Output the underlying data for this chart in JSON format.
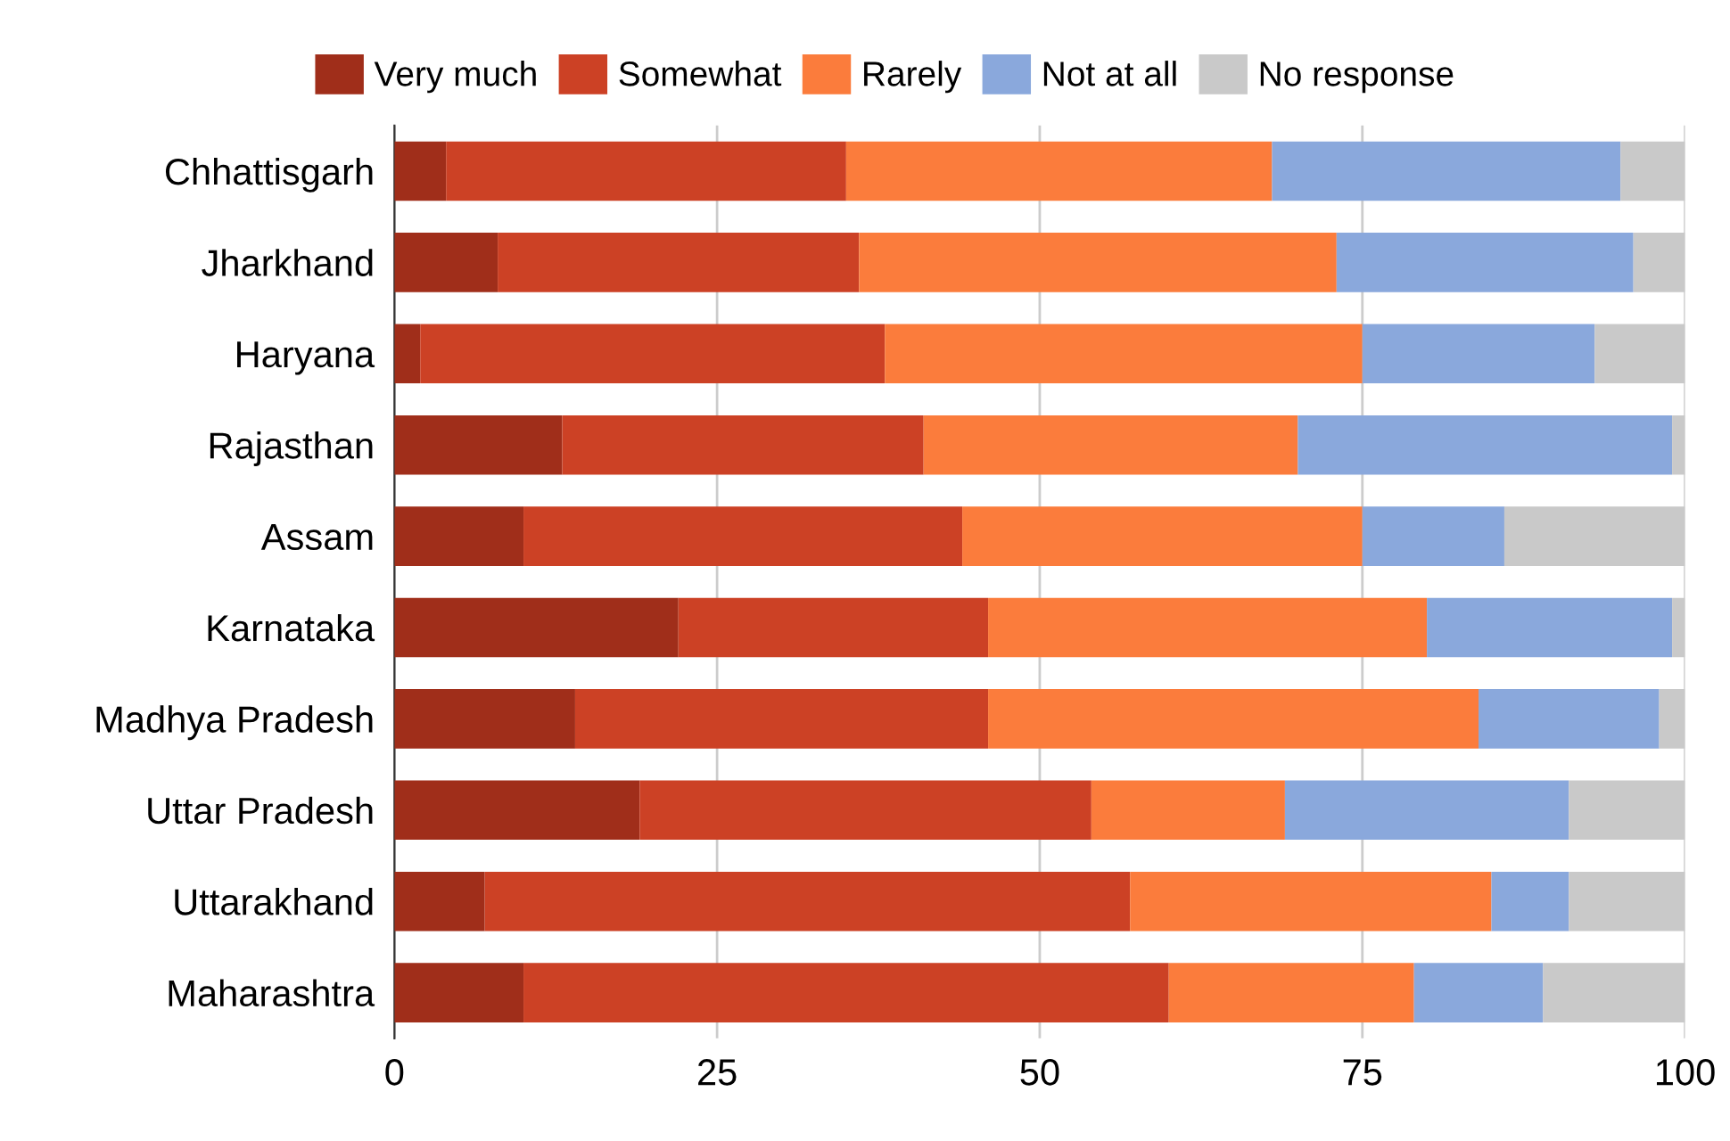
{
  "chart_data": {
    "type": "bar",
    "orientation": "horizontal",
    "stacked": true,
    "categories": [
      "Chhattisgarh",
      "Jharkhand",
      "Haryana",
      "Rajasthan",
      "Assam",
      "Karnataka",
      "Madhya Pradesh",
      "Uttar Pradesh",
      "Uttarakhand",
      "Maharashtra"
    ],
    "series": [
      {
        "name": "Very much",
        "color": "#a02e1a",
        "values": [
          4,
          8,
          2,
          13,
          10,
          22,
          14,
          19,
          7,
          10
        ]
      },
      {
        "name": "Somewhat",
        "color": "#cc4125",
        "values": [
          31,
          28,
          36,
          28,
          34,
          24,
          32,
          35,
          50,
          50
        ]
      },
      {
        "name": "Rarely",
        "color": "#fb7c3c",
        "values": [
          33,
          37,
          37,
          29,
          31,
          34,
          38,
          15,
          28,
          19
        ]
      },
      {
        "name": "Not at all",
        "color": "#8aa8dc",
        "values": [
          27,
          23,
          18,
          29,
          11,
          19,
          14,
          22,
          6,
          10
        ]
      },
      {
        "name": "No response",
        "color": "#c9c9c9",
        "values": [
          5,
          4,
          7,
          1,
          14,
          1,
          2,
          9,
          9,
          11
        ]
      }
    ],
    "xlim": [
      0,
      100
    ],
    "xticks": [
      0,
      25,
      50,
      75,
      100
    ],
    "grid": "x",
    "legend": "top"
  }
}
